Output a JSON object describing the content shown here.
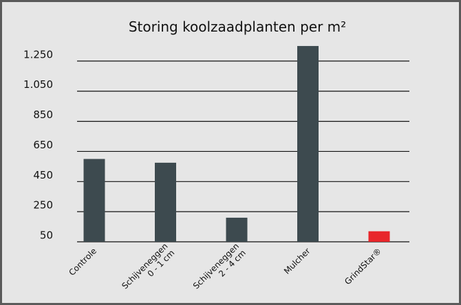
{
  "chart_data": {
    "type": "bar",
    "title": "Storing koolzaadplanten per m²",
    "categories": [
      "Controle",
      "Schijveneggen\n0 - 1 cm",
      "Schijveneggen\n2 - 4 cm",
      "Mulcher",
      "GrindStar®"
    ],
    "values": [
      600,
      575,
      210,
      1350,
      120
    ],
    "colors": [
      "#3d4a4f",
      "#3d4a4f",
      "#3d4a4f",
      "#3d4a4f",
      "#e8262b"
    ],
    "ylim": [
      50,
      1400
    ],
    "yticks": [
      50,
      250,
      450,
      650,
      850,
      {
        "value": 1050,
        "label": "1.050"
      },
      {
        "value": 1250,
        "label": "1.250"
      }
    ],
    "grid": true
  }
}
